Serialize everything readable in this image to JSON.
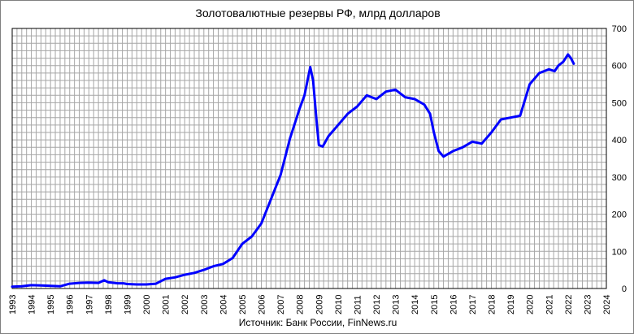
{
  "chart_data": {
    "type": "line",
    "title": "Золотовалютные резервы РФ, млрд долларов",
    "source": "Источник: Банк России, FinNews.ru",
    "xlabel": "",
    "ylabel": "",
    "xlim": [
      1993,
      2024
    ],
    "ylim": [
      0,
      700
    ],
    "y_ticks": [
      0,
      100,
      200,
      300,
      400,
      500,
      600,
      700
    ],
    "x_ticks": [
      "1993",
      "1994",
      "1995",
      "1996",
      "1997",
      "1998",
      "1999",
      "2000",
      "2001",
      "2002",
      "2003",
      "2004",
      "2005",
      "2006",
      "2007",
      "2008",
      "2009",
      "2010",
      "2011",
      "2012",
      "2013",
      "2014",
      "2015",
      "2016",
      "2017",
      "2018",
      "2019",
      "2020",
      "2021",
      "2022",
      "2023",
      "2024"
    ],
    "y_axis_side": "right",
    "grid": true,
    "legend": "none",
    "line_color": "#0000ff",
    "series": [
      {
        "x": [
          1993.0,
          1993.5,
          1994.0,
          1994.5,
          1995.0,
          1995.5,
          1996.0,
          1996.5,
          1997.0,
          1997.5,
          1997.8,
          1998.0,
          1998.5,
          1998.8,
          1999.0,
          1999.5,
          2000.0,
          2000.5,
          2001.0,
          2001.5,
          2002.0,
          2002.5,
          2003.0,
          2003.5,
          2004.0,
          2004.5,
          2005.0,
          2005.5,
          2006.0,
          2006.5,
          2007.0,
          2007.5,
          2008.0,
          2008.25,
          2008.55,
          2008.7,
          2008.9,
          2009.0,
          2009.2,
          2009.5,
          2010.0,
          2010.5,
          2011.0,
          2011.5,
          2012.0,
          2012.5,
          2013.0,
          2013.5,
          2014.0,
          2014.5,
          2014.8,
          2015.0,
          2015.25,
          2015.5,
          2016.0,
          2016.5,
          2017.0,
          2017.5,
          2018.0,
          2018.5,
          2019.0,
          2019.5,
          2020.0,
          2020.5,
          2021.0,
          2021.3,
          2021.5,
          2021.75,
          2022.0,
          2022.15,
          2022.3
        ],
        "y": [
          5,
          6,
          9,
          8,
          7,
          6,
          13,
          15,
          16,
          15,
          22,
          17,
          14,
          14,
          12,
          11,
          11,
          13,
          26,
          30,
          37,
          42,
          50,
          60,
          66,
          82,
          120,
          140,
          175,
          240,
          305,
          405,
          485,
          520,
          596,
          560,
          440,
          386,
          382,
          410,
          440,
          470,
          490,
          520,
          510,
          530,
          535,
          515,
          510,
          495,
          470,
          420,
          370,
          355,
          370,
          380,
          395,
          390,
          420,
          455,
          460,
          465,
          550,
          580,
          590,
          585,
          600,
          610,
          630,
          620,
          605
        ]
      }
    ]
  }
}
